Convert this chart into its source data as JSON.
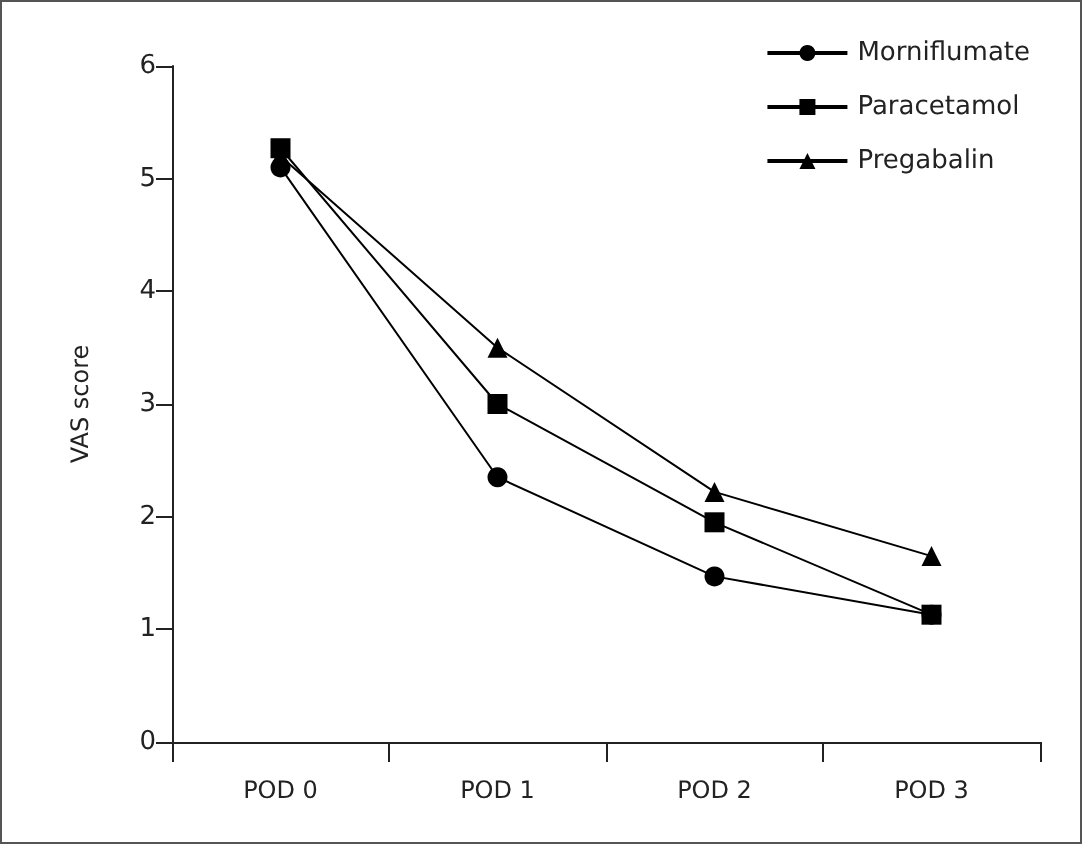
{
  "chart_data": {
    "type": "line",
    "ylabel": "VAS score",
    "categories": [
      "POD 0",
      "POD 1",
      "POD 2",
      "POD 3"
    ],
    "series": [
      {
        "name": "Morniflumate",
        "color": "#000000",
        "marker": "circle",
        "values": [
          5.1,
          2.35,
          1.47,
          1.13
        ]
      },
      {
        "name": "Paracetamol",
        "color": "#000000",
        "marker": "square",
        "values": [
          5.27,
          3.0,
          1.95,
          1.13
        ]
      },
      {
        "name": "Pregabalin",
        "color": "#000000",
        "marker": "triangle",
        "values": [
          5.2,
          3.5,
          2.22,
          1.65
        ]
      }
    ],
    "ylim": [
      0,
      6
    ],
    "yticks": [
      0,
      1,
      2,
      3,
      4,
      5,
      6
    ],
    "grid": false,
    "legend": "top right",
    "line_style": "solid"
  }
}
